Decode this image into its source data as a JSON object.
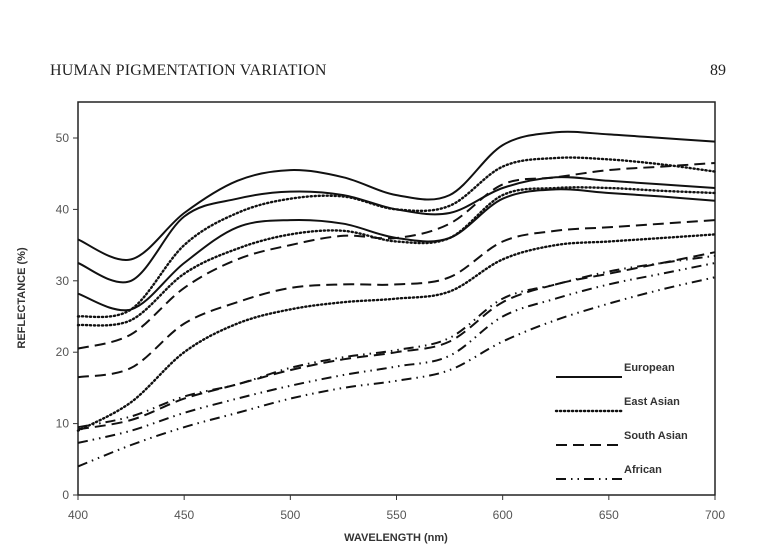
{
  "page": {
    "running_head": "HUMAN PIGMENTATION VARIATION",
    "page_number": "89"
  },
  "chart_data": {
    "type": "line",
    "title": "",
    "xlabel": "WAVELENGTH (nm)",
    "ylabel": "REFLECTANCE (%)",
    "xlim": [
      400,
      700
    ],
    "ylim": [
      0,
      55
    ],
    "xticks": [
      400,
      450,
      500,
      550,
      600,
      650,
      700
    ],
    "yticks": [
      0,
      10,
      20,
      30,
      40,
      50
    ],
    "grid": false,
    "legend_position": "lower right",
    "legend": [
      {
        "name": "European",
        "style": "solid"
      },
      {
        "name": "East Asian",
        "style": "dotted"
      },
      {
        "name": "South Asian",
        "style": "dashed"
      },
      {
        "name": "African",
        "style": "dash-dot-dot"
      }
    ],
    "x": [
      400,
      425,
      450,
      475,
      500,
      525,
      550,
      575,
      600,
      625,
      650,
      675,
      700
    ],
    "series": [
      {
        "name": "European",
        "group": "European",
        "style": "solid",
        "values": [
          35.8,
          33.0,
          39.5,
          44.0,
          45.5,
          44.5,
          42.0,
          42.0,
          49.0,
          50.8,
          50.5,
          50.0,
          49.5
        ]
      },
      {
        "name": "European",
        "group": "European",
        "style": "solid",
        "values": [
          32.5,
          30.0,
          39.0,
          41.5,
          42.5,
          42.0,
          40.0,
          39.5,
          43.0,
          44.5,
          44.0,
          43.5,
          43.0
        ]
      },
      {
        "name": "European",
        "group": "European",
        "style": "solid",
        "values": [
          28.2,
          26.0,
          32.5,
          37.5,
          38.5,
          38.0,
          36.0,
          36.0,
          41.5,
          42.8,
          42.3,
          41.8,
          41.2
        ]
      },
      {
        "name": "East Asian",
        "group": "East Asian",
        "style": "dotted",
        "values": [
          25.0,
          26.0,
          35.0,
          39.5,
          41.5,
          41.8,
          40.0,
          40.5,
          46.0,
          47.2,
          47.0,
          46.3,
          45.3
        ]
      },
      {
        "name": "East Asian",
        "group": "East Asian",
        "style": "dotted",
        "values": [
          23.8,
          24.5,
          31.0,
          34.5,
          36.5,
          37.0,
          35.5,
          36.0,
          42.0,
          43.0,
          43.0,
          42.6,
          42.3
        ]
      },
      {
        "name": "East Asian",
        "group": "East Asian",
        "style": "dotted",
        "values": [
          9.0,
          13.0,
          20.0,
          24.0,
          26.0,
          27.0,
          27.5,
          28.5,
          33.0,
          35.0,
          35.5,
          36.0,
          36.5
        ]
      },
      {
        "name": "South Asian",
        "group": "South Asian",
        "style": "dashed",
        "values": [
          20.5,
          22.5,
          29.0,
          33.0,
          35.0,
          36.3,
          36.0,
          38.0,
          43.5,
          44.5,
          45.5,
          46.0,
          46.5
        ]
      },
      {
        "name": "South Asian",
        "group": "South Asian",
        "style": "dashed",
        "values": [
          16.5,
          17.8,
          24.0,
          27.0,
          29.0,
          29.5,
          29.5,
          30.5,
          35.5,
          37.0,
          37.5,
          38.0,
          38.5
        ]
      },
      {
        "name": "South Asian",
        "group": "South Asian",
        "style": "dashed",
        "values": [
          9.2,
          10.5,
          13.5,
          15.5,
          17.5,
          19.0,
          20.0,
          21.5,
          27.0,
          29.5,
          31.0,
          32.5,
          34.0
        ]
      },
      {
        "name": "African",
        "group": "African",
        "style": "dash-dot-dot",
        "values": [
          9.5,
          11.0,
          13.8,
          15.5,
          17.8,
          19.3,
          20.3,
          22.0,
          27.5,
          29.5,
          31.3,
          32.5,
          33.5
        ]
      },
      {
        "name": "African",
        "group": "African",
        "style": "dash-dot-dot",
        "values": [
          7.3,
          9.0,
          11.5,
          13.5,
          15.3,
          16.8,
          18.0,
          19.5,
          25.0,
          27.5,
          29.5,
          31.0,
          32.5
        ]
      },
      {
        "name": "African",
        "group": "African",
        "style": "dash-dot-dot",
        "values": [
          4.0,
          7.0,
          9.5,
          11.5,
          13.5,
          15.0,
          16.0,
          17.5,
          21.5,
          24.5,
          26.8,
          28.8,
          30.5
        ]
      }
    ]
  },
  "styles": {
    "solid": "",
    "dotted": "1.2 2.8",
    "dashed": "11 6",
    "dash-dot-dot": "10 5 1.5 5 1.5 5"
  }
}
